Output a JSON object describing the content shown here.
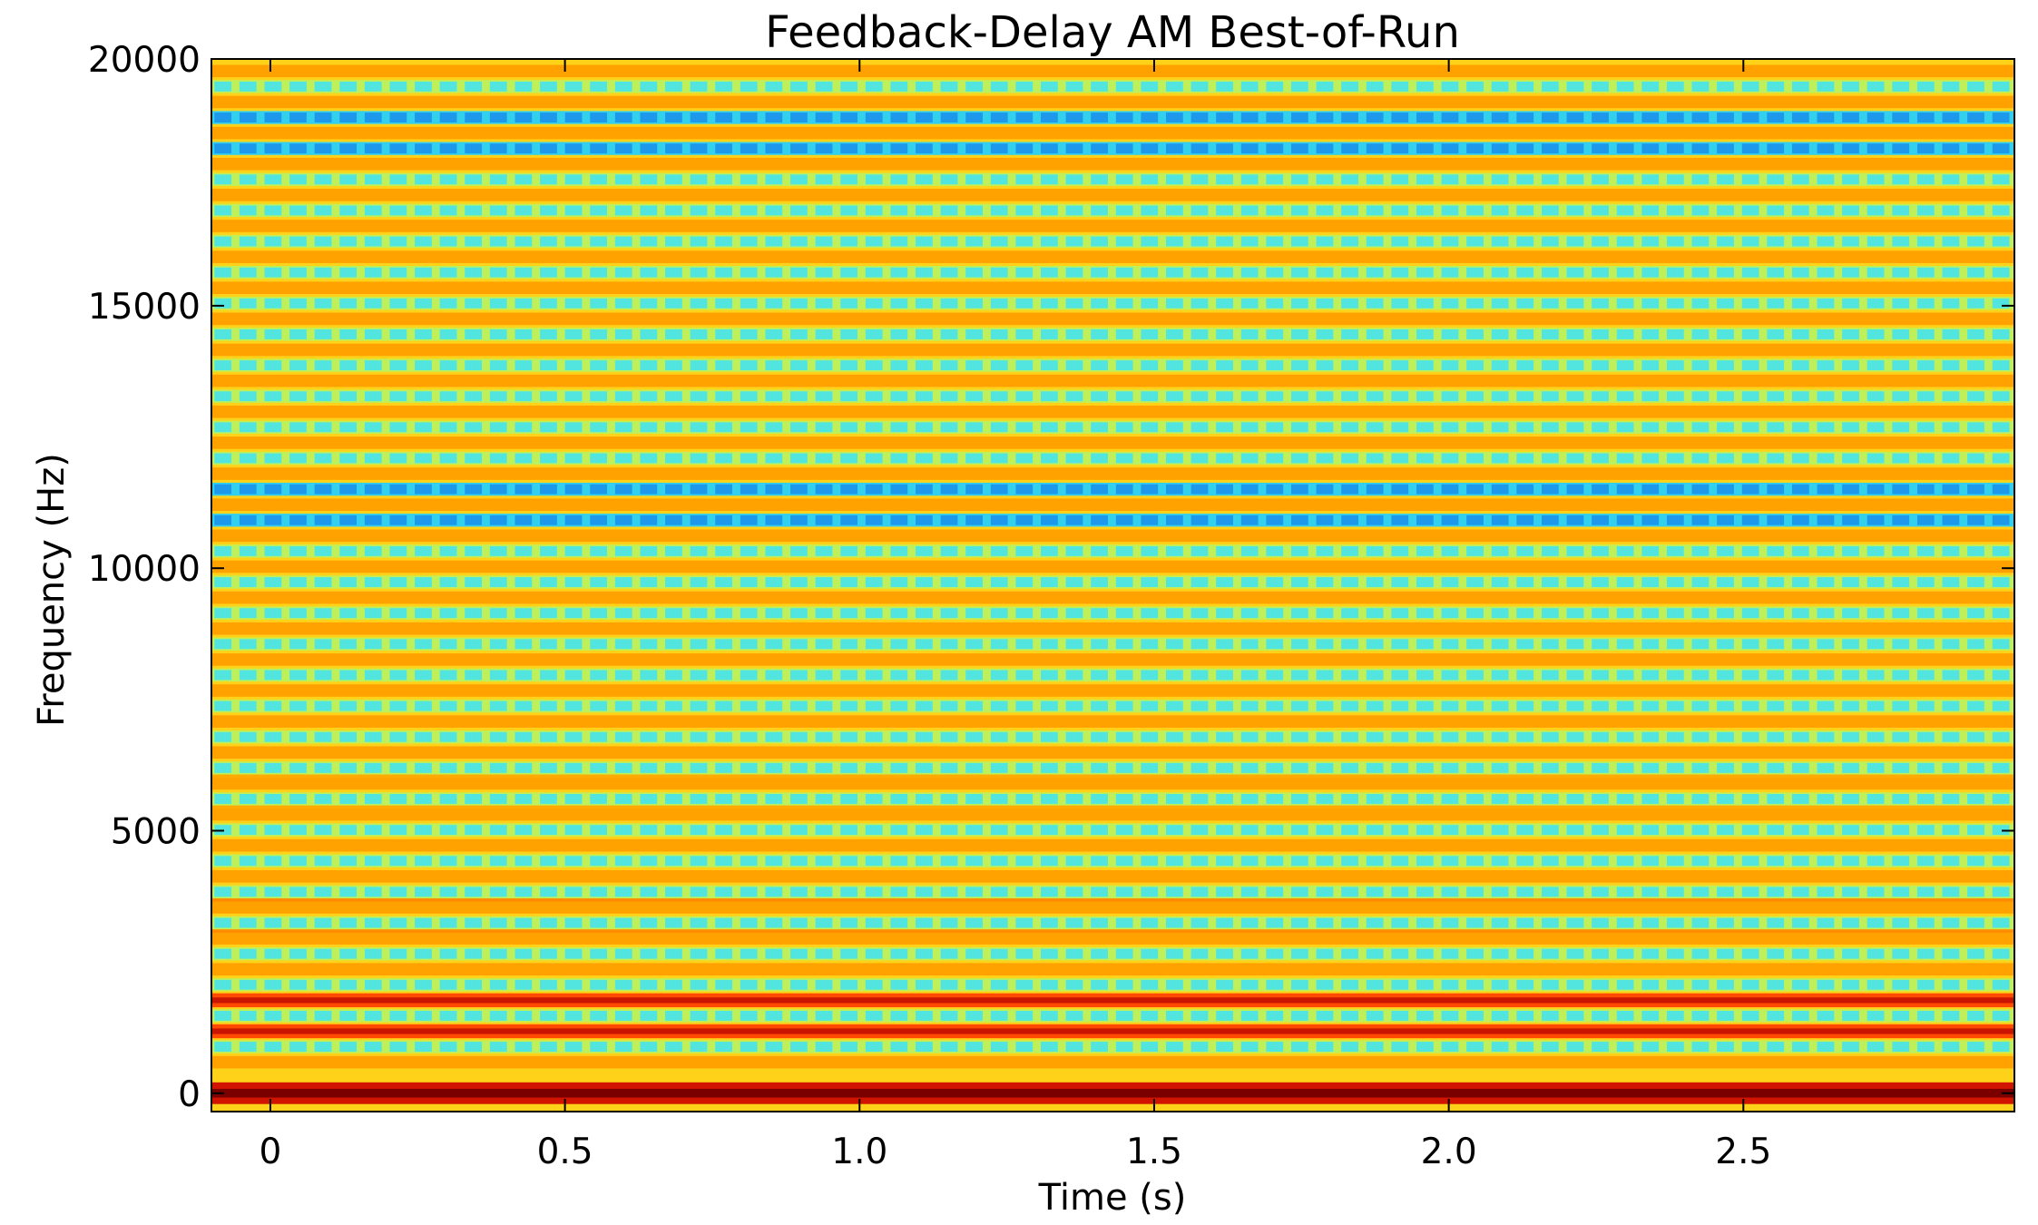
{
  "chart_data": {
    "type": "heatmap",
    "title": "Feedback-Delay AM Best-of-Run",
    "xlabel": "Time (s)",
    "ylabel": "Frequency (Hz)",
    "xlim": [
      -0.1,
      2.96
    ],
    "ylim": [
      -350,
      19700
    ],
    "x_ticks": [
      0,
      0.5,
      1.0,
      1.5,
      2.0,
      2.5
    ],
    "x_tick_labels": [
      "0",
      "0.5",
      "1.0",
      "1.5",
      "2.0",
      "2.5"
    ],
    "y_ticks": [
      0,
      5000,
      10000,
      15000,
      20000
    ],
    "y_tick_labels": [
      "0",
      "5000",
      "10000",
      "15000",
      "20000"
    ],
    "grid": false,
    "colormap": "jet",
    "colorbar": false,
    "harmonic_spacing_hz": 590,
    "modulation_period_s": 0.0425,
    "bands": [
      {
        "frequency_hz": 0,
        "level": "dark-red"
      },
      {
        "frequency_hz": 1180,
        "level": "red"
      },
      {
        "frequency_hz": 1770,
        "level": "red"
      },
      {
        "frequency_hz": 3190,
        "level": "orange-red"
      },
      {
        "frequency_hz": 3780,
        "level": "orange-red"
      },
      {
        "frequency_hz": 5550,
        "level": "orange"
      },
      {
        "frequency_hz": 6140,
        "level": "orange"
      },
      {
        "frequency_hz": 10800,
        "level": "blue"
      },
      {
        "frequency_hz": 11390,
        "level": "blue"
      },
      {
        "frequency_hz": 17900,
        "level": "blue"
      },
      {
        "frequency_hz": 18500,
        "level": "blue"
      }
    ]
  }
}
